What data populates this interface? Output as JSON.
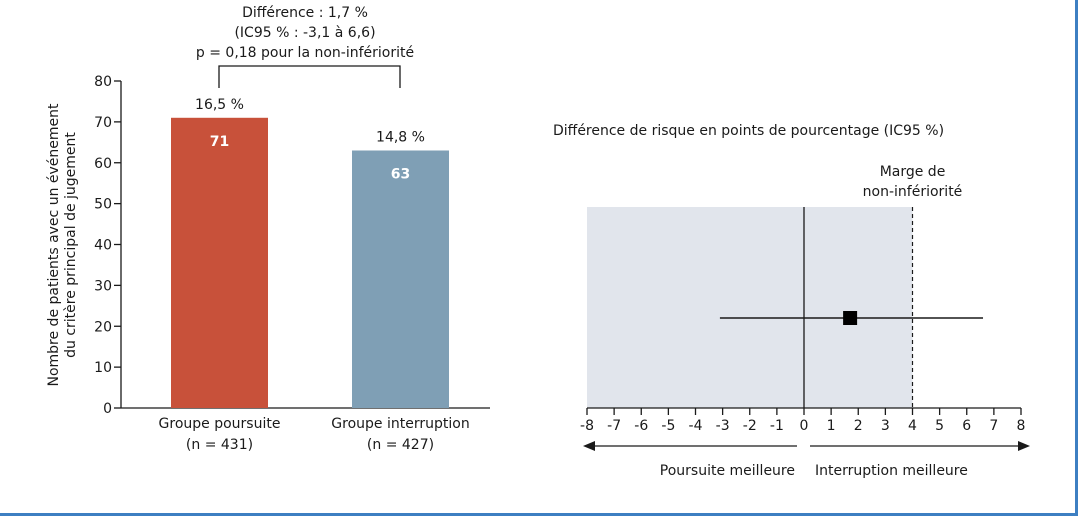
{
  "colors": {
    "poursuite": "#c8513a",
    "interruption": "#7f9fb5",
    "shade": "#e1e5ec",
    "frame": "#3d7fc2"
  },
  "chart_data": [
    {
      "type": "bar",
      "ylabel_line1": "Nombre de patients avec un événement",
      "ylabel_line2": "du critère principal de jugement",
      "ylim": [
        0,
        80
      ],
      "yticks": [
        "0",
        "10",
        "20",
        "30",
        "40",
        "50",
        "60",
        "70",
        "80"
      ],
      "categories": [
        {
          "line1": "Groupe poursuite",
          "line2": "(n = 431)"
        },
        {
          "line1": "Groupe interruption",
          "line2": "(n = 427)"
        }
      ],
      "values": [
        71,
        63
      ],
      "value_labels": [
        "71",
        "63"
      ],
      "percent_labels": [
        "16,5 %",
        "14,8 %"
      ],
      "comparison": {
        "line1": "Différence : 1,7 %",
        "line2": "(IC95 % : -3,1 à 6,6)",
        "line3": "p = 0,18 pour la non-infériorité"
      }
    },
    {
      "type": "forest",
      "title": "Différence de risque en points de pourcentage (IC95 %)",
      "xlim": [
        -8,
        8
      ],
      "xticks": [
        "-8",
        "-7",
        "-6",
        "-5",
        "-4",
        "-3",
        "-2",
        "-1",
        "0",
        "1",
        "2",
        "3",
        "4",
        "5",
        "6",
        "7",
        "8"
      ],
      "estimate": 1.7,
      "ci": [
        -3.1,
        6.6
      ],
      "margin": 4,
      "margin_label_line1": "Marge de",
      "margin_label_line2": "non-infériorité",
      "left_label": "Poursuite meilleure",
      "right_label": "Interruption meilleure"
    }
  ]
}
